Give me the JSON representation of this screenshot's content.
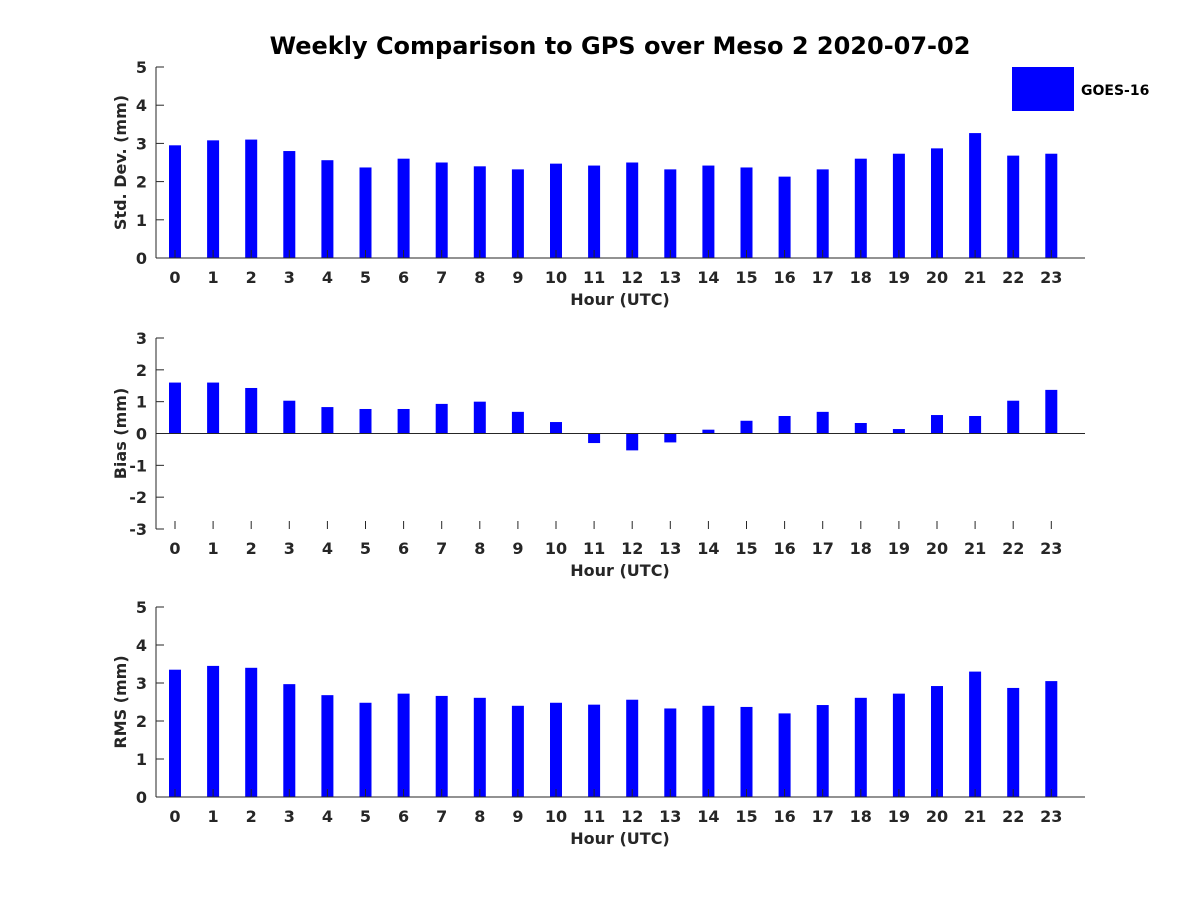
{
  "title": "Weekly Comparison to GPS over Meso 2 2020-07-02",
  "legend": {
    "label": "GOES-16",
    "color": "#0000ff"
  },
  "chart_data": [
    {
      "type": "bar",
      "ylabel": "Std. Dev. (mm)",
      "xlabel": "Hour (UTC)",
      "ylim": [
        0,
        5
      ],
      "yticks": [
        0,
        1,
        2,
        3,
        4,
        5
      ],
      "categories": [
        "0",
        "1",
        "2",
        "3",
        "4",
        "5",
        "6",
        "7",
        "8",
        "9",
        "10",
        "11",
        "12",
        "13",
        "14",
        "15",
        "16",
        "17",
        "18",
        "19",
        "20",
        "21",
        "22",
        "23"
      ],
      "series": [
        {
          "name": "GOES-16",
          "values": [
            2.95,
            3.08,
            3.1,
            2.8,
            2.56,
            2.37,
            2.6,
            2.5,
            2.4,
            2.32,
            2.47,
            2.42,
            2.5,
            2.32,
            2.42,
            2.37,
            2.13,
            2.32,
            2.6,
            2.73,
            2.87,
            3.27,
            2.68,
            2.73
          ]
        }
      ]
    },
    {
      "type": "bar",
      "ylabel": "Bias (mm)",
      "xlabel": "Hour (UTC)",
      "ylim": [
        -3,
        3
      ],
      "yticks": [
        -3,
        -2,
        -1,
        0,
        1,
        2,
        3
      ],
      "categories": [
        "0",
        "1",
        "2",
        "3",
        "4",
        "5",
        "6",
        "7",
        "8",
        "9",
        "10",
        "11",
        "12",
        "13",
        "14",
        "15",
        "16",
        "17",
        "18",
        "19",
        "20",
        "21",
        "22",
        "23"
      ],
      "series": [
        {
          "name": "GOES-16",
          "values": [
            1.6,
            1.6,
            1.43,
            1.03,
            0.83,
            0.77,
            0.77,
            0.93,
            1.0,
            0.68,
            0.36,
            -0.3,
            -0.53,
            -0.28,
            0.12,
            0.4,
            0.55,
            0.68,
            0.33,
            0.14,
            0.58,
            0.55,
            1.03,
            1.37
          ]
        }
      ]
    },
    {
      "type": "bar",
      "ylabel": "RMS (mm)",
      "xlabel": "Hour (UTC)",
      "ylim": [
        0,
        5
      ],
      "yticks": [
        0,
        1,
        2,
        3,
        4,
        5
      ],
      "categories": [
        "0",
        "1",
        "2",
        "3",
        "4",
        "5",
        "6",
        "7",
        "8",
        "9",
        "10",
        "11",
        "12",
        "13",
        "14",
        "15",
        "16",
        "17",
        "18",
        "19",
        "20",
        "21",
        "22",
        "23"
      ],
      "series": [
        {
          "name": "GOES-16",
          "values": [
            3.35,
            3.45,
            3.4,
            2.97,
            2.68,
            2.48,
            2.72,
            2.66,
            2.61,
            2.4,
            2.48,
            2.43,
            2.56,
            2.33,
            2.4,
            2.37,
            2.2,
            2.42,
            2.61,
            2.72,
            2.92,
            3.3,
            2.87,
            3.05
          ]
        }
      ]
    }
  ]
}
